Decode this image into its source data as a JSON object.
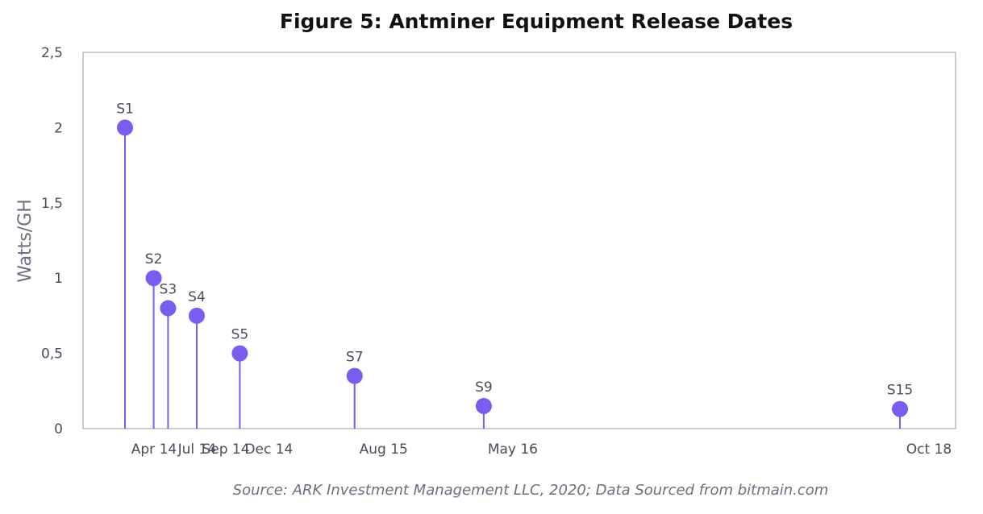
{
  "chart_data": {
    "type": "lollipop",
    "title": "Figure 5: Antminer Equipment Release Dates",
    "ylabel": "Watts/GH",
    "xlabel": "",
    "ylim": [
      0,
      2.5
    ],
    "yticks": [
      "0",
      "0,5",
      "1",
      "1,5",
      "2",
      "2,5"
    ],
    "ytick_values": [
      0,
      0.5,
      1,
      1.5,
      2,
      2.5
    ],
    "points": [
      {
        "label": "S1",
        "date": "2014-04",
        "x_label": "Apr 14",
        "value": 2.0
      },
      {
        "label": "S2",
        "date": "2014-06",
        "x_label": "",
        "value": 1.0
      },
      {
        "label": "S3",
        "date": "2014-07",
        "x_label": "Jul 14",
        "value": 0.8
      },
      {
        "label": "S4",
        "date": "2014-09",
        "x_label": "Sep 14",
        "value": 0.75
      },
      {
        "label": "S5",
        "date": "2014-12",
        "x_label": "Dec 14",
        "value": 0.5
      },
      {
        "label": "S7",
        "date": "2015-08",
        "x_label": "Aug 15",
        "value": 0.35
      },
      {
        "label": "S9",
        "date": "2016-05",
        "x_label": "May 16",
        "value": 0.15
      },
      {
        "label": "S15",
        "date": "2018-10",
        "x_label": "Oct 18",
        "value": 0.13
      }
    ],
    "grid": false,
    "color": "#7b5cf0",
    "source": "Source: ARK Investment Management LLC, 2020; Data Sourced from bitmain.com"
  }
}
